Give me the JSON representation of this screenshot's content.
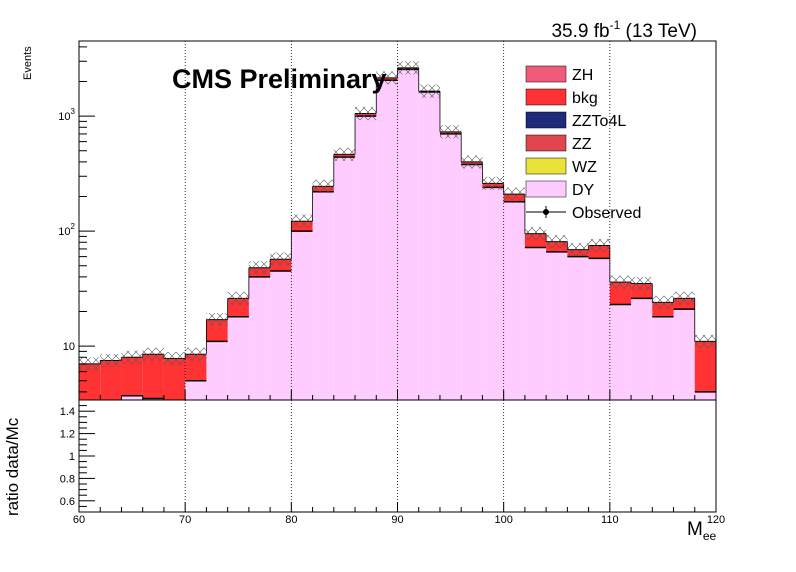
{
  "chart_data": [
    {
      "type": "bar",
      "stacked": true,
      "title_right": "35.9 fb",
      "title_sup": "-1",
      "title_tail": " (13 TeV)",
      "annotation": "CMS Preliminary",
      "ylabel": "Events",
      "xlabel_main": "M",
      "xlabel_sub": "ee",
      "ylog": true,
      "ylim": [
        3.4,
        4500
      ],
      "xlim": [
        60,
        120
      ],
      "x_ticks": [
        "60",
        "70",
        "80",
        "90",
        "100",
        "110",
        "120"
      ],
      "y_tick_labels": [
        {
          "value": 10,
          "base": "10",
          "exp": ""
        },
        {
          "value": 100,
          "base": "10",
          "exp": "2"
        },
        {
          "value": 1000,
          "base": "10",
          "exp": "3"
        }
      ],
      "grid_x": true,
      "legend_position": "top-right",
      "bin_edges": [
        60,
        62,
        64,
        66,
        68,
        70,
        72,
        74,
        76,
        78,
        80,
        82,
        84,
        86,
        88,
        90,
        92,
        94,
        96,
        98,
        100,
        102,
        104,
        106,
        108,
        110,
        112,
        114,
        116,
        118,
        120
      ],
      "series": [
        {
          "name": "DY",
          "color": "#ffccff",
          "values": [
            0,
            0,
            3.7,
            3.5,
            0,
            5,
            11,
            18,
            40,
            45,
            100,
            220,
            440,
            1000,
            2050,
            2550,
            1620,
            700,
            380,
            240,
            180,
            72,
            66,
            60,
            58,
            23,
            26,
            18,
            21,
            4
          ]
        },
        {
          "name": "WZ",
          "color": "#e8e23a",
          "values": [
            0,
            0,
            0,
            0,
            0,
            0,
            0,
            0,
            0,
            0,
            0,
            0,
            0,
            0,
            0,
            0,
            0,
            0,
            0,
            0,
            0,
            0,
            0,
            0,
            0,
            0,
            0,
            0,
            0,
            0
          ]
        },
        {
          "name": "ZZ",
          "color": "#e04650",
          "values": [
            0,
            0,
            0,
            0,
            0,
            0,
            0,
            0,
            0,
            0,
            0,
            0,
            0,
            0,
            0,
            0,
            0,
            0,
            0,
            0,
            0,
            0,
            0,
            0,
            0,
            0,
            0,
            0,
            0,
            0
          ]
        },
        {
          "name": "ZZTo4L",
          "color": "#1f2a7a",
          "values": [
            0,
            0,
            0,
            0,
            0,
            0,
            0,
            0,
            0,
            0,
            0,
            0,
            0,
            0,
            0,
            0,
            0,
            0,
            0,
            0,
            0,
            0,
            0,
            0,
            0,
            0,
            0,
            0,
            0,
            0
          ]
        },
        {
          "name": "bkg",
          "color": "#ff3333",
          "values": [
            7,
            7.5,
            4.3,
            5,
            7.8,
            3.5,
            6,
            8,
            8,
            12,
            22,
            25,
            25,
            55,
            100,
            80,
            30,
            30,
            20,
            20,
            30,
            23,
            15,
            9,
            17,
            13,
            9,
            6,
            5,
            7
          ]
        },
        {
          "name": "ZH",
          "color": "#f05c78",
          "values": [
            0,
            0,
            0,
            0,
            0,
            0,
            0,
            0,
            0,
            0,
            0,
            0,
            0,
            0,
            0,
            0,
            0,
            0,
            0,
            0,
            0,
            0,
            0,
            0,
            0,
            0,
            0,
            0,
            0,
            0
          ]
        }
      ],
      "legend": [
        {
          "name": "ZH",
          "color": "#f05c78"
        },
        {
          "name": "bkg",
          "color": "#ff3333"
        },
        {
          "name": "ZZTo4L",
          "color": "#1f2a7a"
        },
        {
          "name": "ZZ",
          "color": "#e04650"
        },
        {
          "name": "WZ",
          "color": "#e8e23a"
        },
        {
          "name": "DY",
          "color": "#ffccff"
        },
        {
          "name": "Observed",
          "color": "#000000",
          "marker": true
        }
      ]
    },
    {
      "type": "line",
      "ylabel": "ratio data/Mc",
      "ylim": [
        0.5,
        1.5
      ],
      "xlim": [
        60,
        120
      ],
      "y_ticks": [
        "0.6",
        "0.8",
        "1",
        "1.2",
        "1.4"
      ],
      "x_ticks": [
        "60",
        "70",
        "80",
        "90",
        "100",
        "110",
        "120"
      ],
      "grid_x": true,
      "series": []
    }
  ]
}
